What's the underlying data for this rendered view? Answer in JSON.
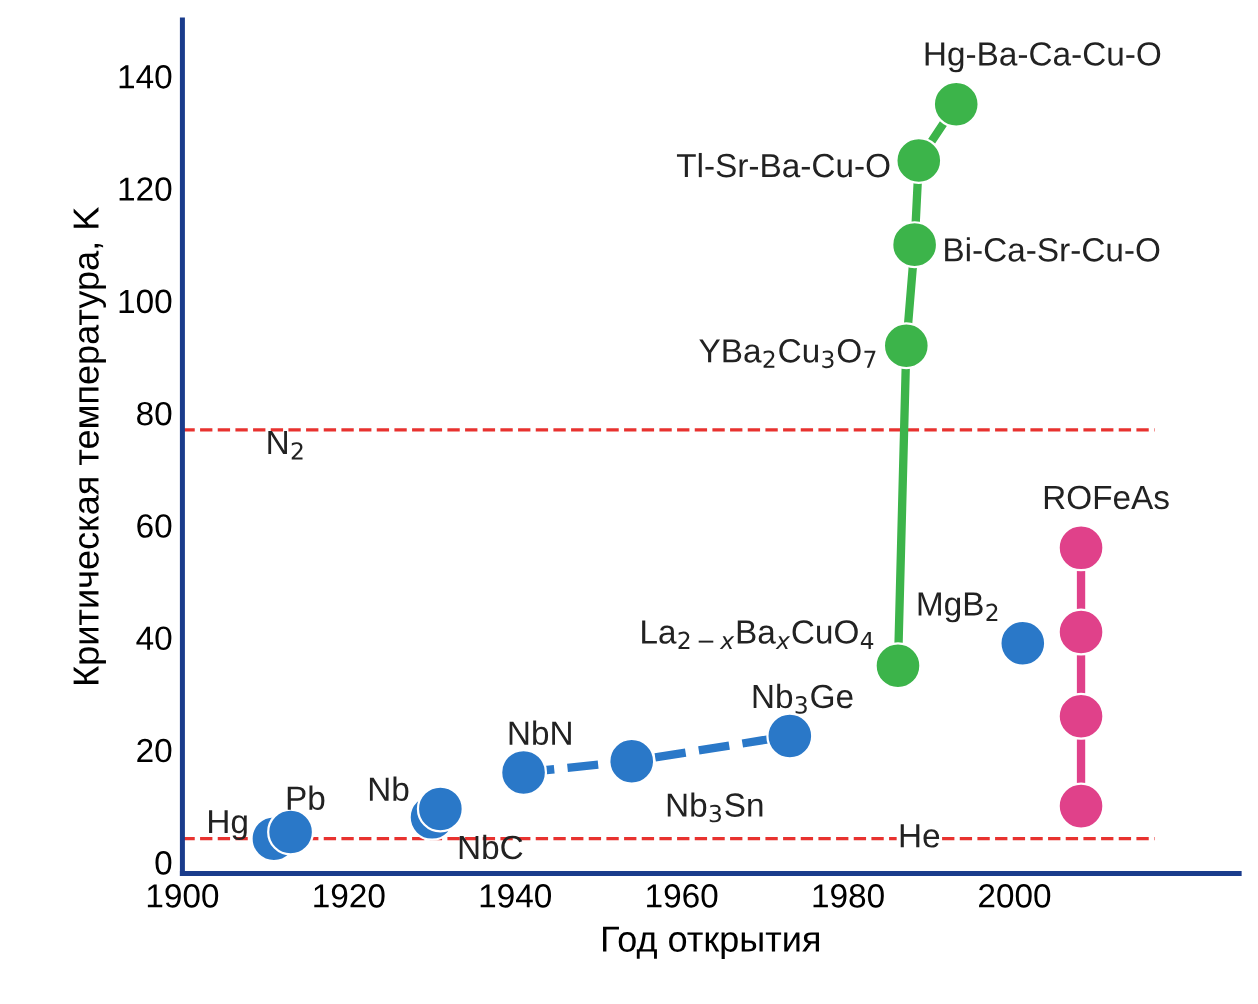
{
  "chart_data": {
    "type": "scatter",
    "xlabel": "Год открытия",
    "ylabel": "Критическая температура, K",
    "xlim": [
      1900,
      2027
    ],
    "ylim": [
      -2,
      150
    ],
    "xticks": [
      1900,
      1920,
      1940,
      1960,
      1980,
      2000
    ],
    "yticks": [
      0,
      20,
      40,
      60,
      80,
      100,
      120,
      140
    ],
    "grid": false,
    "marker": "circle",
    "series": [
      {
        "color": "#2a78c8",
        "x": [
          1911,
          1913,
          1930,
          1931,
          2001
        ],
        "values": [
          4.2,
          5.4,
          8,
          9.5,
          39
        ]
      },
      {
        "type": "line",
        "line_style": "dashed",
        "color": "#2a78c8",
        "x": [
          1941,
          1954,
          1973
        ],
        "values": [
          16,
          18,
          22.5
        ]
      },
      {
        "type": "line",
        "line_style": "solid",
        "color": "#3cb44a",
        "x": [
          1986,
          1987,
          1988,
          1988.5,
          1993
        ],
        "values": [
          35,
          92,
          110,
          125,
          135
        ]
      },
      {
        "type": "line",
        "line_style": "solid",
        "color": "#e0418a",
        "x": [
          2008,
          2008,
          2008,
          2008
        ],
        "values": [
          10,
          26,
          41,
          56
        ]
      }
    ],
    "ref_lines": [
      {
        "axis": "y",
        "value": 77,
        "label": "N$_{2}$",
        "color": "#e8322f",
        "line_style": "dashed"
      },
      {
        "axis": "y",
        "value": 4.2,
        "label": "He",
        "color": "#e8322f",
        "line_style": "dashed"
      }
    ],
    "annotations": [
      {
        "text": "Hg",
        "x": 1911,
        "y": 4.2
      },
      {
        "text": "Pb",
        "x": 1913,
        "y": 5.4
      },
      {
        "text": "Nb",
        "x": 1930,
        "y": 8
      },
      {
        "text": "NbC",
        "x": 1931,
        "y": 9.5
      },
      {
        "text": "NbN",
        "x": 1941,
        "y": 16
      },
      {
        "text": "Nb$_{3}$Sn",
        "x": 1954,
        "y": 18
      },
      {
        "text": "Nb$_{3}$Ge",
        "x": 1973,
        "y": 22.5
      },
      {
        "text": "La$_{2−x}$Ba$_{x}$CuO$_{4}$",
        "x": 1986,
        "y": 35
      },
      {
        "text": "YBa$_{2}$Cu$_{3}$O$_{7}$",
        "x": 1987,
        "y": 92
      },
      {
        "text": "Bi-Ca-Sr-Cu-O",
        "x": 1988,
        "y": 110
      },
      {
        "text": "Tl-Sr-Ba-Cu-O",
        "x": 1988.5,
        "y": 125
      },
      {
        "text": "Hg-Ba-Ca-Cu-O",
        "x": 1993,
        "y": 135
      },
      {
        "text": "MgB$_{2}$",
        "x": 2001,
        "y": 39
      },
      {
        "text": "ROFeAs",
        "x": 2008,
        "y": 56
      }
    ]
  }
}
